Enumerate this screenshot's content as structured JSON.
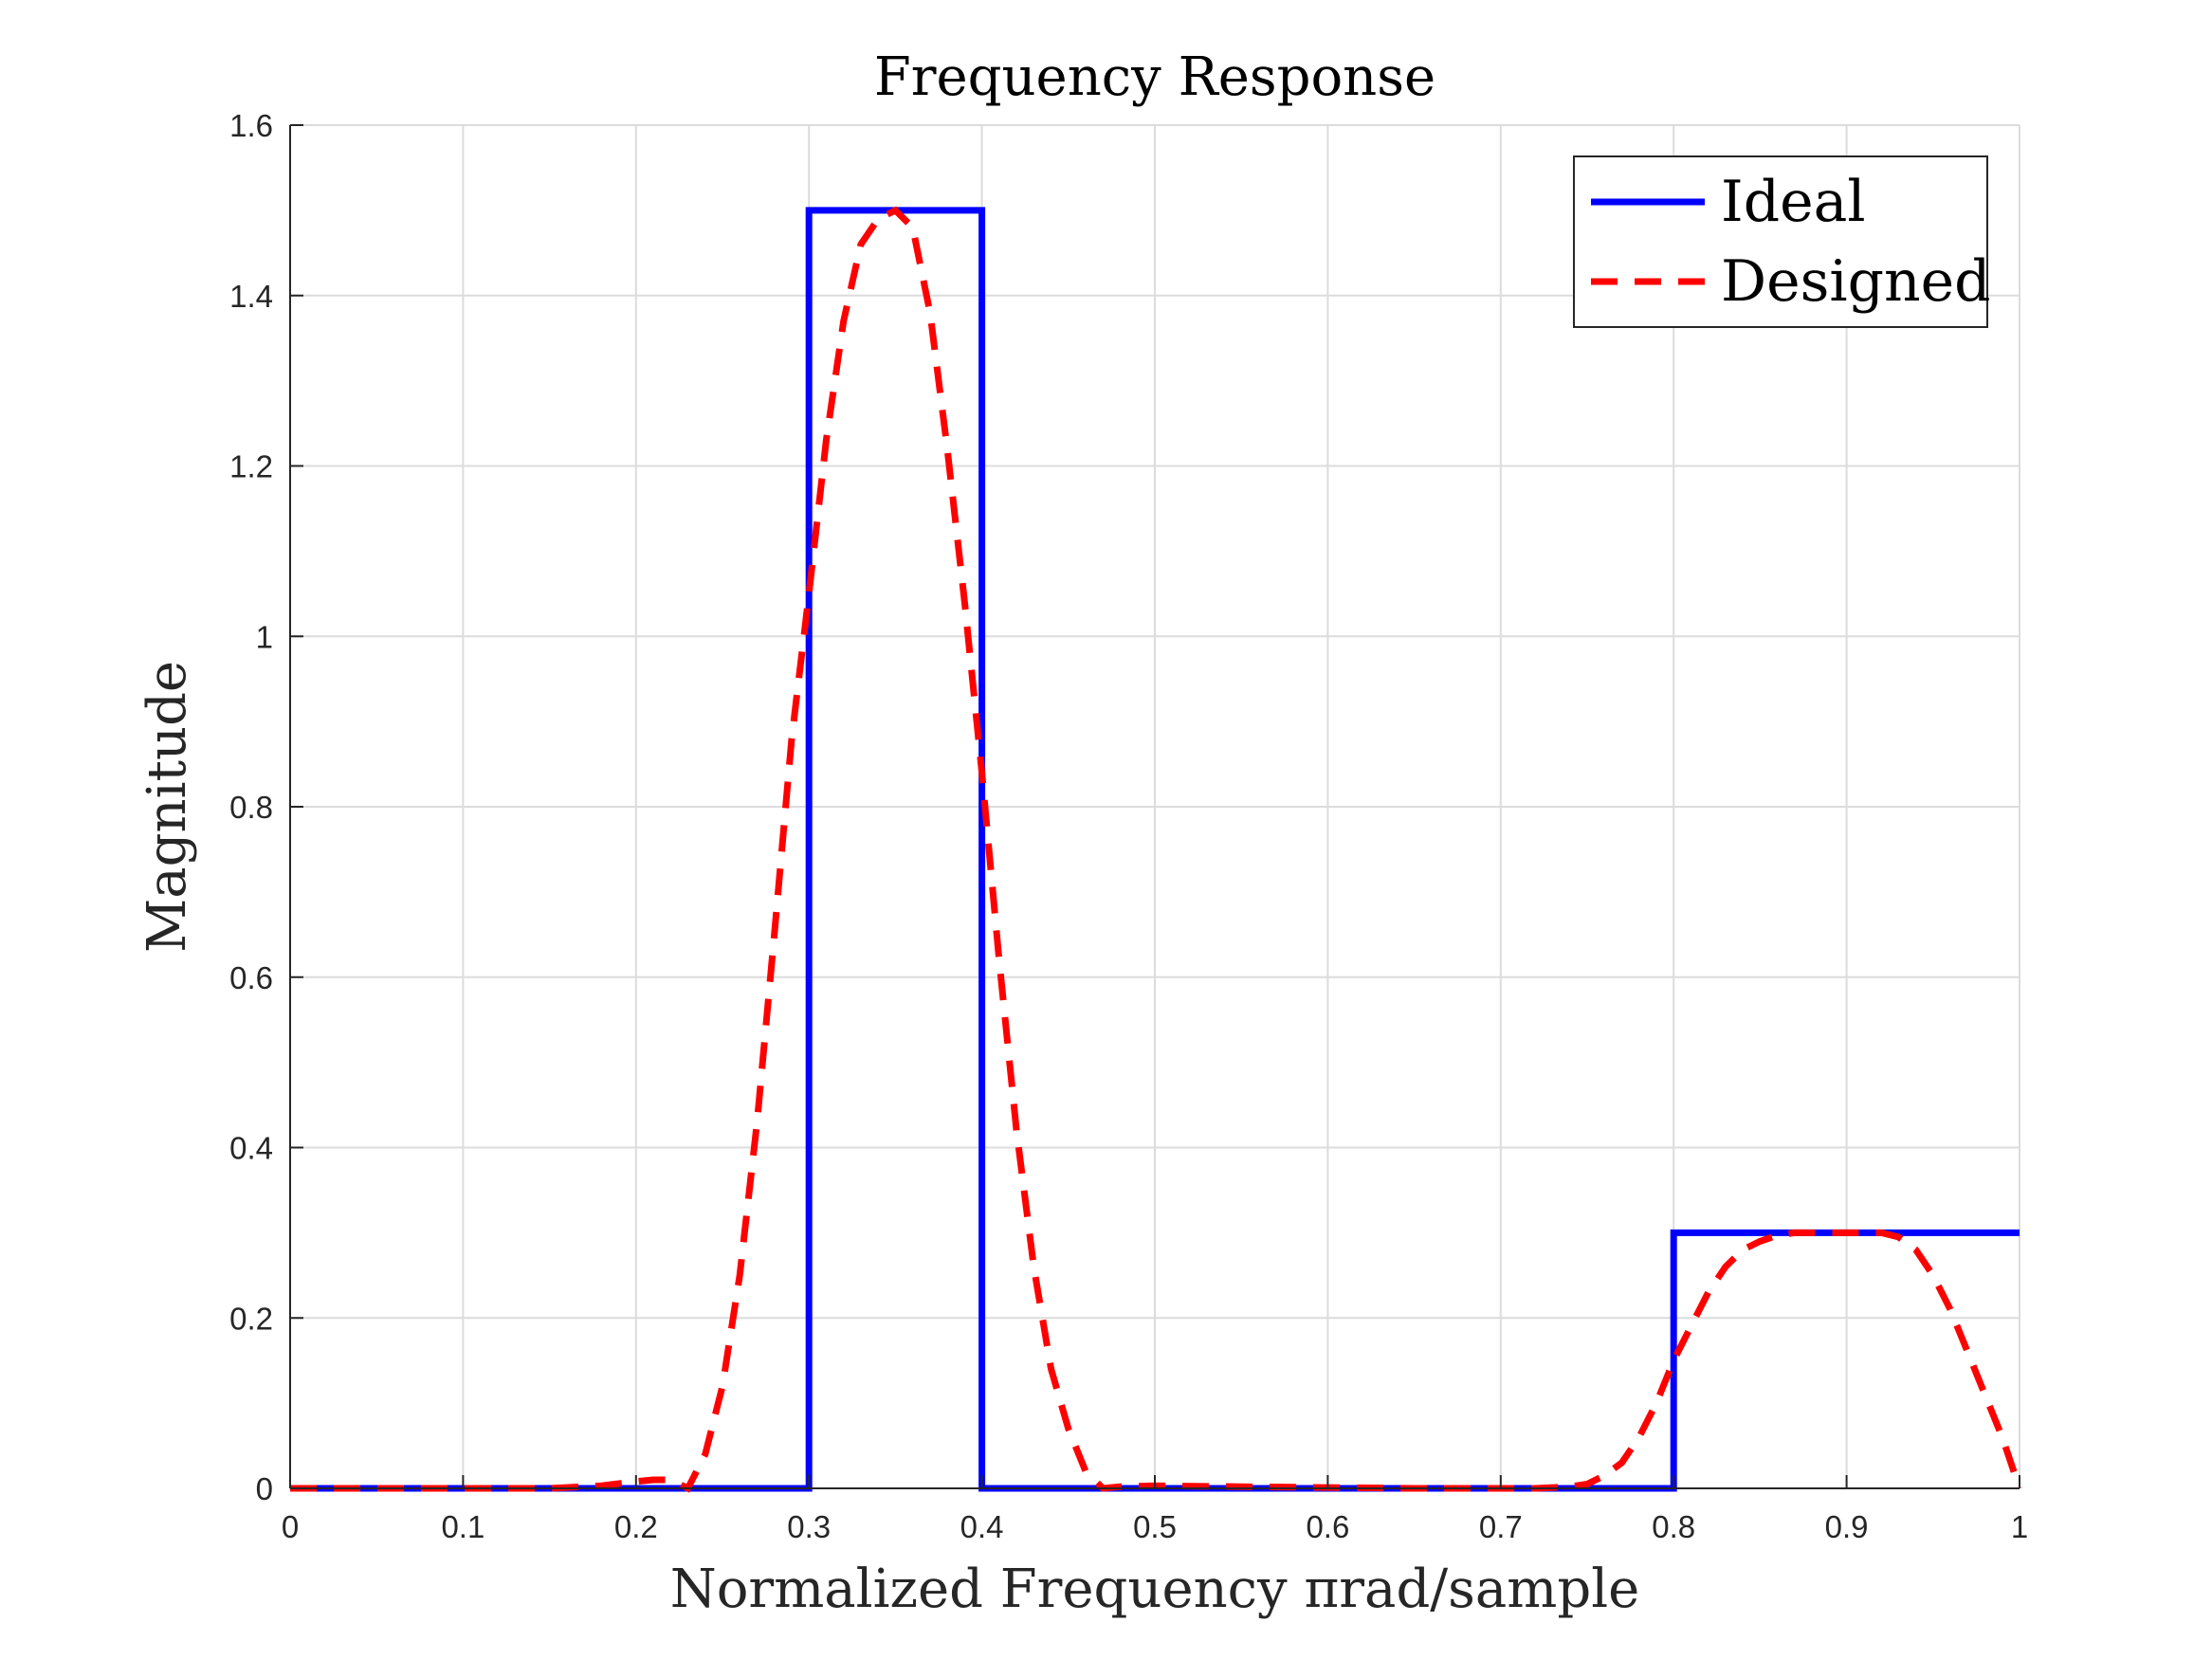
{
  "chart_data": {
    "type": "line",
    "title": "Frequency Response",
    "xlabel": "Normalized Frequency πrad/sample",
    "ylabel": "Magnitude",
    "xlim": [
      0,
      1
    ],
    "ylim": [
      0,
      1.6
    ],
    "xticks": [
      0,
      0.1,
      0.2,
      0.3,
      0.4,
      0.5,
      0.6,
      0.7,
      0.8,
      0.9,
      1
    ],
    "xtick_labels": [
      "0",
      "0.1",
      "0.2",
      "0.3",
      "0.4",
      "0.5",
      "0.6",
      "0.7",
      "0.8",
      "0.9",
      "1"
    ],
    "yticks": [
      0,
      0.2,
      0.4,
      0.6,
      0.8,
      1,
      1.2,
      1.4,
      1.6
    ],
    "ytick_labels": [
      "0",
      "0.2",
      "0.4",
      "0.6",
      "0.8",
      "1",
      "1.2",
      "1.4",
      "1.6"
    ],
    "grid": true,
    "legend_position": "top-right",
    "series": [
      {
        "name": "Ideal",
        "color": "#0000ff",
        "style": "solid",
        "x": [
          0,
          0.3,
          0.3,
          0.4,
          0.4,
          0.8,
          0.8,
          1
        ],
        "y": [
          0,
          0,
          1.5,
          1.5,
          0,
          0,
          0.3,
          0.3
        ]
      },
      {
        "name": "Designed",
        "color": "#ff0000",
        "style": "dashed",
        "x": [
          0,
          0.05,
          0.1,
          0.15,
          0.18,
          0.2,
          0.21,
          0.22,
          0.23,
          0.24,
          0.25,
          0.26,
          0.27,
          0.28,
          0.29,
          0.3,
          0.31,
          0.32,
          0.33,
          0.34,
          0.35,
          0.36,
          0.37,
          0.38,
          0.39,
          0.4,
          0.41,
          0.42,
          0.43,
          0.44,
          0.45,
          0.46,
          0.47,
          0.48,
          0.5,
          0.55,
          0.6,
          0.65,
          0.7,
          0.72,
          0.74,
          0.75,
          0.76,
          0.77,
          0.78,
          0.79,
          0.8,
          0.81,
          0.82,
          0.83,
          0.84,
          0.85,
          0.86,
          0.87,
          0.88,
          0.89,
          0.9,
          0.91,
          0.92,
          0.93,
          0.94,
          0.95,
          0.96,
          0.97,
          0.98,
          0.99,
          1.0
        ],
        "y": [
          0,
          0,
          0,
          0,
          0.003,
          0.008,
          0.01,
          0.01,
          0,
          0.04,
          0.12,
          0.25,
          0.43,
          0.65,
          0.88,
          1.05,
          1.23,
          1.37,
          1.46,
          1.49,
          1.5,
          1.48,
          1.38,
          1.22,
          1.04,
          0.84,
          0.62,
          0.42,
          0.26,
          0.14,
          0.07,
          0.02,
          0,
          0.002,
          0.003,
          0.002,
          0.001,
          0,
          0,
          0,
          0.002,
          0.005,
          0.015,
          0.03,
          0.06,
          0.1,
          0.15,
          0.19,
          0.23,
          0.26,
          0.28,
          0.29,
          0.297,
          0.3,
          0.3,
          0.3,
          0.3,
          0.3,
          0.3,
          0.295,
          0.28,
          0.25,
          0.21,
          0.16,
          0.11,
          0.06,
          0
        ]
      }
    ]
  }
}
